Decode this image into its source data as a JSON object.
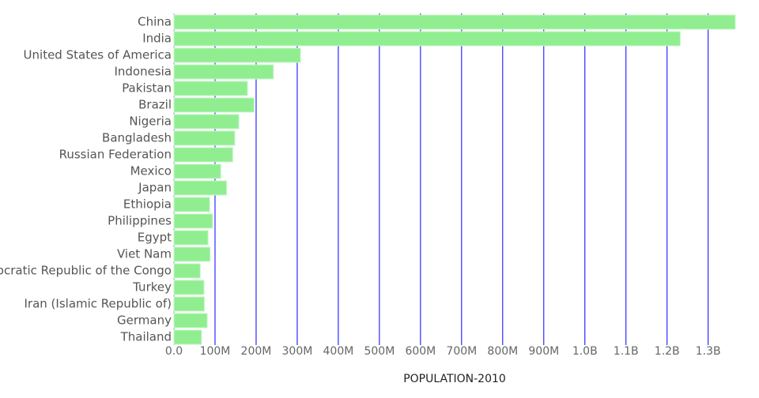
{
  "chart_data": {
    "type": "bar",
    "orientation": "horizontal",
    "title": "",
    "xlabel": "POPULATION-2010",
    "ylabel": "",
    "xlim": [
      0,
      1366000000
    ],
    "grid": true,
    "bar_color": "#90ee90",
    "grid_color": "#0000ff",
    "x_ticks": [
      {
        "value": 0,
        "label": "0.0"
      },
      {
        "value": 100000000,
        "label": "100M"
      },
      {
        "value": 200000000,
        "label": "200M"
      },
      {
        "value": 300000000,
        "label": "300M"
      },
      {
        "value": 400000000,
        "label": "400M"
      },
      {
        "value": 500000000,
        "label": "500M"
      },
      {
        "value": 600000000,
        "label": "600M"
      },
      {
        "value": 700000000,
        "label": "700M"
      },
      {
        "value": 800000000,
        "label": "800M"
      },
      {
        "value": 900000000,
        "label": "900M"
      },
      {
        "value": 1000000000,
        "label": "1.0B"
      },
      {
        "value": 1100000000,
        "label": "1.1B"
      },
      {
        "value": 1200000000,
        "label": "1.2B"
      },
      {
        "value": 1300000000,
        "label": "1.3B"
      }
    ],
    "categories": [
      "China",
      "India",
      "United States of America",
      "Indonesia",
      "Pakistan",
      "Brazil",
      "Nigeria",
      "Bangladesh",
      "Russian Federation",
      "Mexico",
      "Japan",
      "Ethiopia",
      "Philippines",
      "Egypt",
      "Viet Nam",
      "Democratic Republic of the Congo",
      "Turkey",
      "Iran (Islamic Republic of)",
      "Germany",
      "Thailand"
    ],
    "values": [
      1366000000,
      1232000000,
      308000000,
      242000000,
      179000000,
      195000000,
      158000000,
      148000000,
      143000000,
      114000000,
      128000000,
      87000000,
      94000000,
      83000000,
      88000000,
      64000000,
      73000000,
      74000000,
      81000000,
      67000000
    ]
  }
}
